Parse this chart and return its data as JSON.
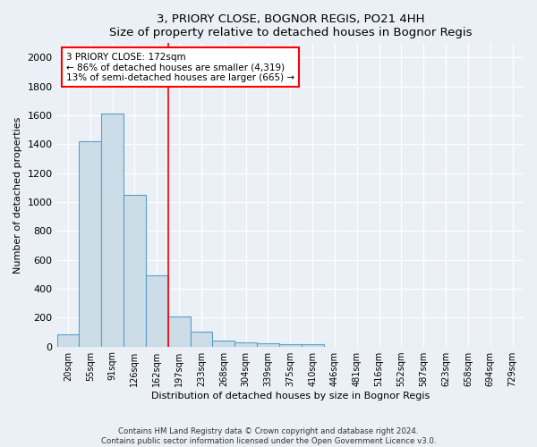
{
  "title": "3, PRIORY CLOSE, BOGNOR REGIS, PO21 4HH",
  "subtitle": "Size of property relative to detached houses in Bognor Regis",
  "xlabel": "Distribution of detached houses by size in Bognor Regis",
  "ylabel": "Number of detached properties",
  "bar_labels": [
    "20sqm",
    "55sqm",
    "91sqm",
    "126sqm",
    "162sqm",
    "197sqm",
    "233sqm",
    "268sqm",
    "304sqm",
    "339sqm",
    "375sqm",
    "410sqm",
    "446sqm",
    "481sqm",
    "516sqm",
    "552sqm",
    "587sqm",
    "623sqm",
    "658sqm",
    "694sqm",
    "729sqm"
  ],
  "bar_values": [
    85,
    1420,
    1610,
    1050,
    490,
    205,
    105,
    42,
    28,
    22,
    18,
    18,
    0,
    0,
    0,
    0,
    0,
    0,
    0,
    0,
    0
  ],
  "bar_color": "#ccdde8",
  "bar_edge_color": "#5a9ec8",
  "vline_x": 4.5,
  "vline_color": "red",
  "annotation_text": "3 PRIORY CLOSE: 172sqm\n← 86% of detached houses are smaller (4,319)\n13% of semi-detached houses are larger (665) →",
  "annotation_box_color": "white",
  "annotation_border_color": "red",
  "ylim": [
    0,
    2100
  ],
  "yticks": [
    0,
    200,
    400,
    600,
    800,
    1000,
    1200,
    1400,
    1600,
    1800,
    2000
  ],
  "footnote": "Contains HM Land Registry data © Crown copyright and database right 2024.\nContains public sector information licensed under the Open Government Licence v3.0.",
  "bg_color": "#eaf0f6",
  "grid_color": "#ffffff"
}
